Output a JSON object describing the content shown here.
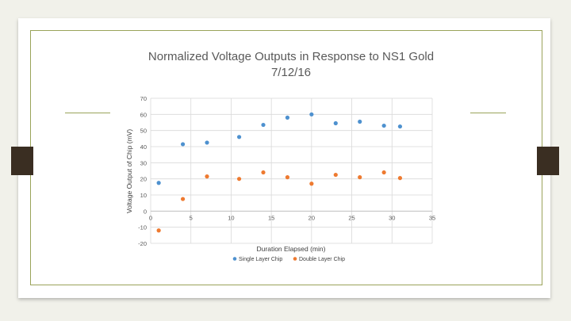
{
  "chart_data": {
    "type": "scatter",
    "title": "Normalized Voltage Outputs in Response to NS1 Gold",
    "subtitle": "7/12/16",
    "xlabel": "Duration Elapsed (min)",
    "ylabel": "Voltage Output of Chip (mV)",
    "xlim": [
      0,
      35
    ],
    "ylim": [
      -20,
      70
    ],
    "xticks": [
      0,
      5,
      10,
      15,
      20,
      25,
      30,
      35
    ],
    "yticks": [
      -20,
      -10,
      0,
      10,
      20,
      30,
      40,
      50,
      60,
      70
    ],
    "grid": true,
    "legend": "bottom",
    "series": [
      {
        "name": "Single Layer Chip",
        "color": "#4e91cf",
        "x": [
          1,
          4,
          7,
          11,
          14,
          17,
          20,
          23,
          26,
          29,
          31
        ],
        "y": [
          17.5,
          41.5,
          42.5,
          46,
          53.5,
          58,
          60,
          54.5,
          55.5,
          53,
          52.5
        ]
      },
      {
        "name": "Double Layer Chip",
        "color": "#ee7a30",
        "x": [
          1,
          4,
          7,
          11,
          14,
          17,
          20,
          23,
          26,
          29,
          31
        ],
        "y": [
          -12,
          7.5,
          21.5,
          20,
          24,
          21,
          17,
          22.5,
          21,
          24,
          20.5
        ]
      }
    ]
  }
}
